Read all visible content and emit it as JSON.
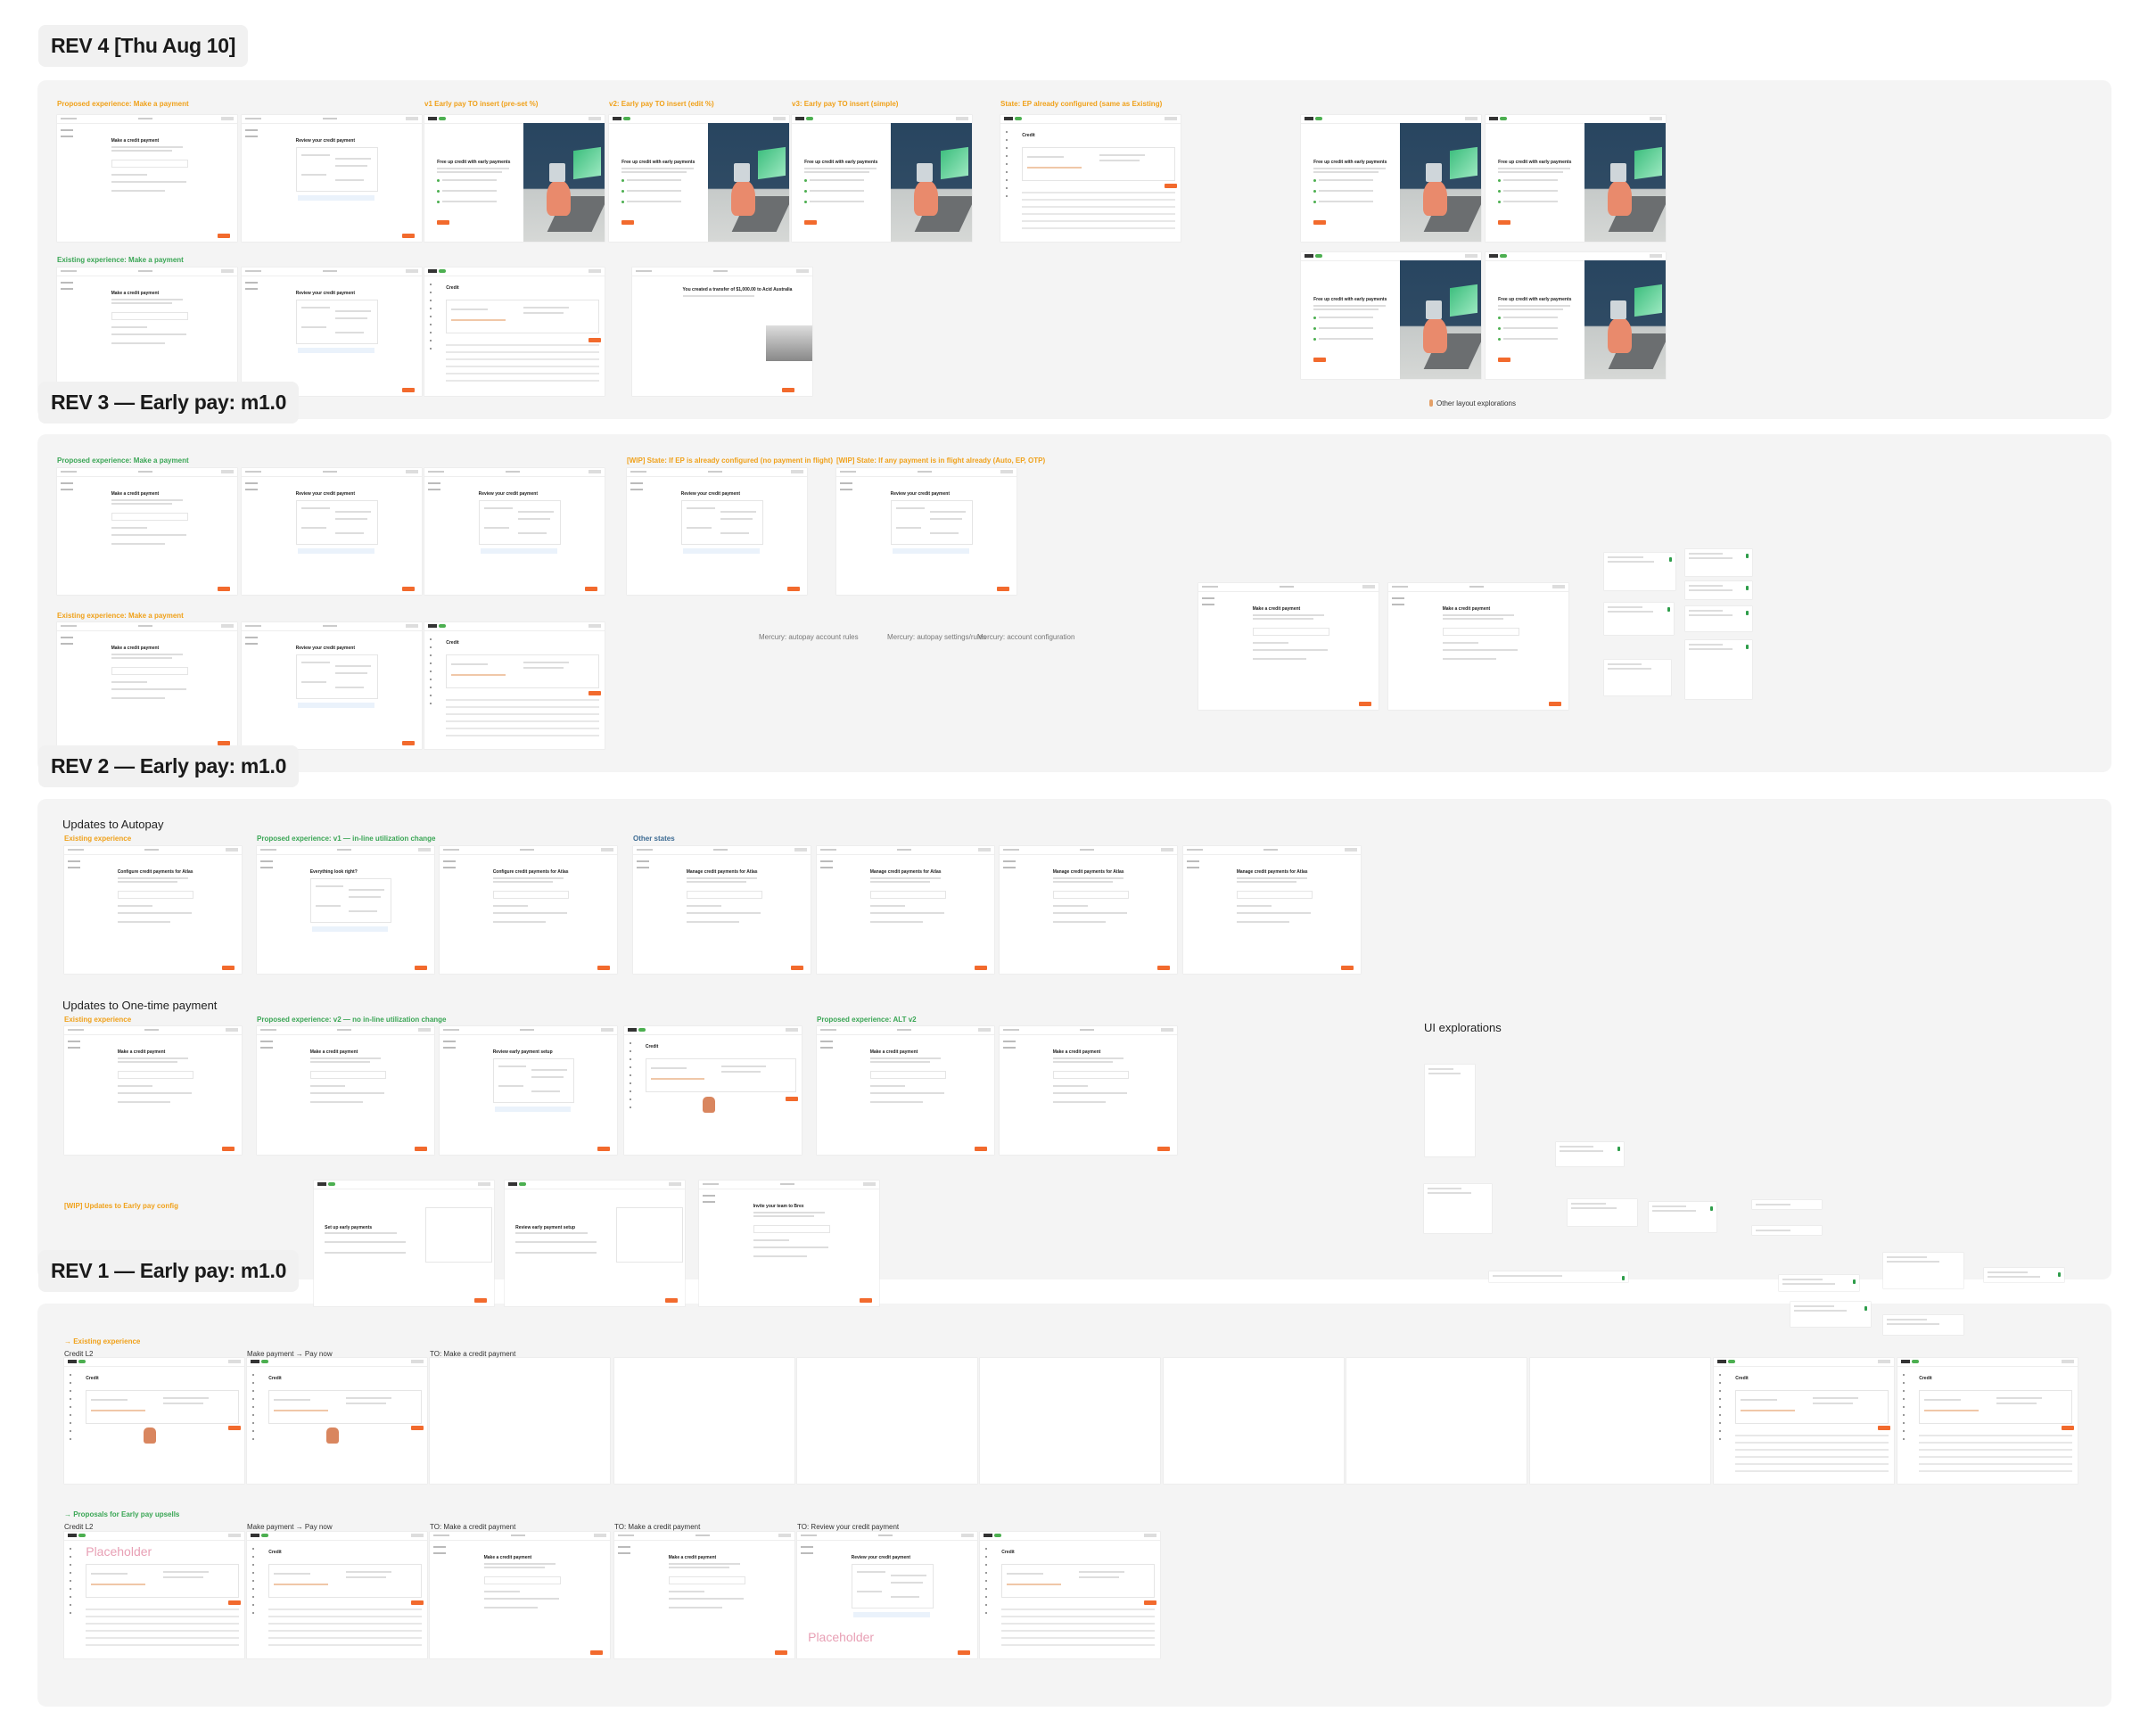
{
  "colors": {
    "orange_label": "#f0a11a",
    "green_label": "#3aa655",
    "blue_label": "#3d6b93",
    "primary_button": "#f26a2d",
    "canvas_section": "#f4f4f4"
  },
  "rev4": {
    "title": "REV 4 [Thu Aug 10]",
    "labels": [
      "Proposed experience: Make a payment",
      "v1 Early pay TO insert (pre-set %)",
      "v2: Early pay TO insert (edit %)",
      "v3: Early pay TO insert (simple)",
      "State: EP already configured (same as Existing)",
      "Existing experience: Make a payment",
      "Other layout explorations"
    ],
    "frames": [
      "Make a credit payment",
      "Review your credit payment",
      "Free up credit with early payments",
      "Free up credit with early payments",
      "Free up credit with early payments",
      "Credit",
      "Free up credit with early payments",
      "Free up credit with early payments",
      "Free up credit with early payments",
      "Free up credit with early payments",
      "Make a credit payment",
      "Review your credit payment",
      "Credit",
      "You created a transfer of $1,000.00 to Acid Australia"
    ]
  },
  "rev3": {
    "title": "REV 3 — Early pay: m1.0",
    "labels": [
      "Proposed experience: Make a payment",
      "[WIP] State: If EP is already configured (no payment in flight)",
      "[WIP] State: If any payment is in flight already (Auto, EP, OTP)",
      "Existing experience: Make a payment",
      "Mercury: autopay account rules",
      "Mercury: autopay settings/rules",
      "Mercury: account configuration"
    ],
    "frames": [
      "Make a credit payment",
      "Review your credit payment",
      "Review your credit payment",
      "Review your credit payment",
      "Review your credit payment",
      "Make a credit payment",
      "Review your credit payment",
      "Credit",
      "Make a credit payment",
      "Make a credit payment"
    ]
  },
  "rev2": {
    "title": "REV 2 — Early pay: m1.0",
    "headings": [
      "Updates to Autopay",
      "Updates to One-time payment",
      "UI explorations"
    ],
    "labels": [
      "Existing experience",
      "Proposed experience: v1 — in-line utilization change",
      "Other states",
      "Existing experience",
      "Proposed experience: v2 — no in-line utilization change",
      "Proposed experience: ALT v2",
      "[WIP] Updates to Early pay config"
    ],
    "frames": [
      "Configure credit payments for Atlas",
      "Everything look right?",
      "Configure credit payments for Atlas",
      "Manage credit payments for Atlas",
      "Manage credit payments for Atlas",
      "Manage credit payments for Atlas",
      "Manage credit payments for Atlas",
      "Make a credit payment",
      "Make a credit payment",
      "Review early payment setup",
      "Credit",
      "Make a credit payment",
      "Make a credit payment",
      "Set up early payments",
      "Review early payment setup",
      "Invite your team to Brex"
    ]
  },
  "rev1": {
    "title": "REV 1 — Early pay: m1.0",
    "labels": [
      "→ Existing experience",
      "Credit L2",
      "Make payment → Pay now",
      "TO: Make a credit payment",
      "→ Proposals for Early pay upsells",
      "Credit L2",
      "Make payment → Pay now",
      "TO: Make a credit payment",
      "TO: Make a credit payment",
      "TO: Review your credit payment"
    ],
    "frames": [
      "Credit",
      "Credit",
      "",
      "",
      "",
      "",
      "",
      "",
      "",
      "Credit",
      "Credit",
      "Placeholder",
      "Credit",
      "Make a credit payment",
      "Make a credit payment",
      "Placeholder",
      "Credit"
    ]
  }
}
